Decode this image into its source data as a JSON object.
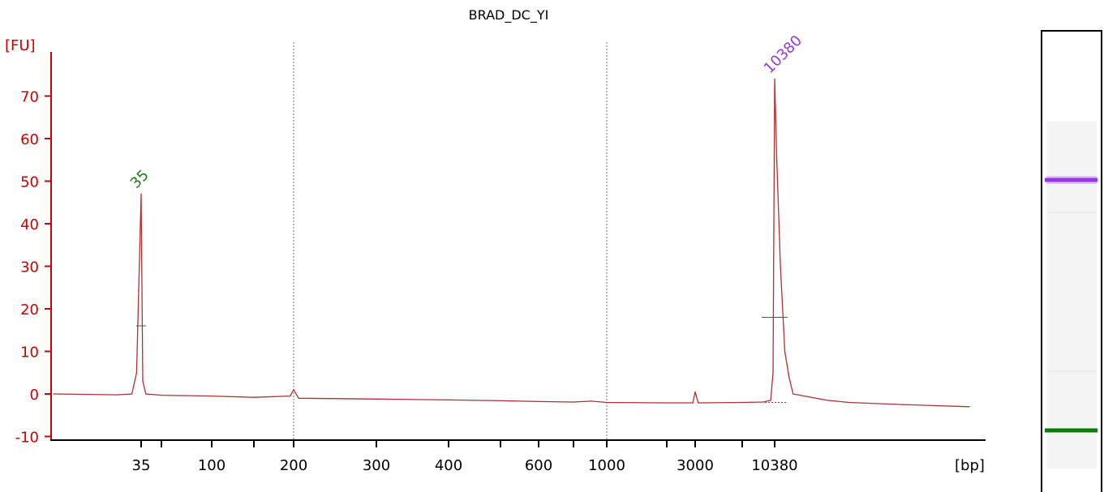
{
  "colors": {
    "trace": "#b03030",
    "y_axis": "#cc0000",
    "x_axis": "#000000",
    "marker_peak": "#1a7a1a",
    "sample_peak": "#9933ee",
    "gel_lower_band": "#0d7a0d",
    "gel_upper_band": "#9933ee",
    "gridline": "#777777"
  },
  "chart_data": {
    "type": "line",
    "title": "BRAD_DC_YI",
    "ylabel": "[FU]",
    "xlabel": "[bp]",
    "ylim": [
      -10,
      75
    ],
    "y_ticks": [
      -10,
      0,
      10,
      20,
      30,
      40,
      50,
      60,
      70
    ],
    "x_tick_labels": [
      "35",
      "100",
      "200",
      "300",
      "400",
      "600",
      "1000",
      "3000",
      "10380"
    ],
    "x_scale": "sizing ladder (non-linear bp)",
    "vertical_gridlines_at": [
      "200",
      "1000"
    ],
    "grid": false,
    "series": [
      {
        "x": [
          20,
          30,
          33,
          34,
          34.5,
          35,
          35.5,
          36,
          38,
          50,
          100,
          150,
          195,
          200,
          205,
          250,
          300,
          400,
          500,
          600,
          800,
          900,
          1000,
          2000,
          2900,
          3000,
          3100,
          5000,
          8000,
          9500,
          10000,
          10200,
          10380,
          10600,
          11000,
          11500,
          12000,
          12500,
          14000,
          17000,
          20000,
          30000,
          50000
        ],
        "y": [
          0,
          -0.2,
          0,
          5,
          26,
          47,
          25,
          3,
          0,
          -0.3,
          -0.5,
          -0.8,
          -0.5,
          1,
          -1,
          -1.1,
          -1.2,
          -1.4,
          -1.6,
          -1.8,
          -1.9,
          -1.7,
          -2,
          -2.1,
          -2.1,
          0.5,
          -2.1,
          -2,
          -1.9,
          -1.5,
          5,
          40,
          74,
          55,
          30,
          10,
          4,
          0,
          -0.5,
          -1.5,
          -2,
          -2.5,
          -3
        ]
      }
    ],
    "peaks": [
      {
        "label": "35",
        "size_bp": 35,
        "height_fu": 47,
        "color": "green",
        "midheight_fu": 16
      },
      {
        "label": "10380",
        "size_bp": 10380,
        "height_fu": 74,
        "color": "purple",
        "midheight_fu": 18
      }
    ],
    "gel_lane": {
      "bands": [
        {
          "size_bp": 10380,
          "color": "purple"
        },
        {
          "size_bp": 35,
          "color": "green"
        }
      ]
    }
  }
}
